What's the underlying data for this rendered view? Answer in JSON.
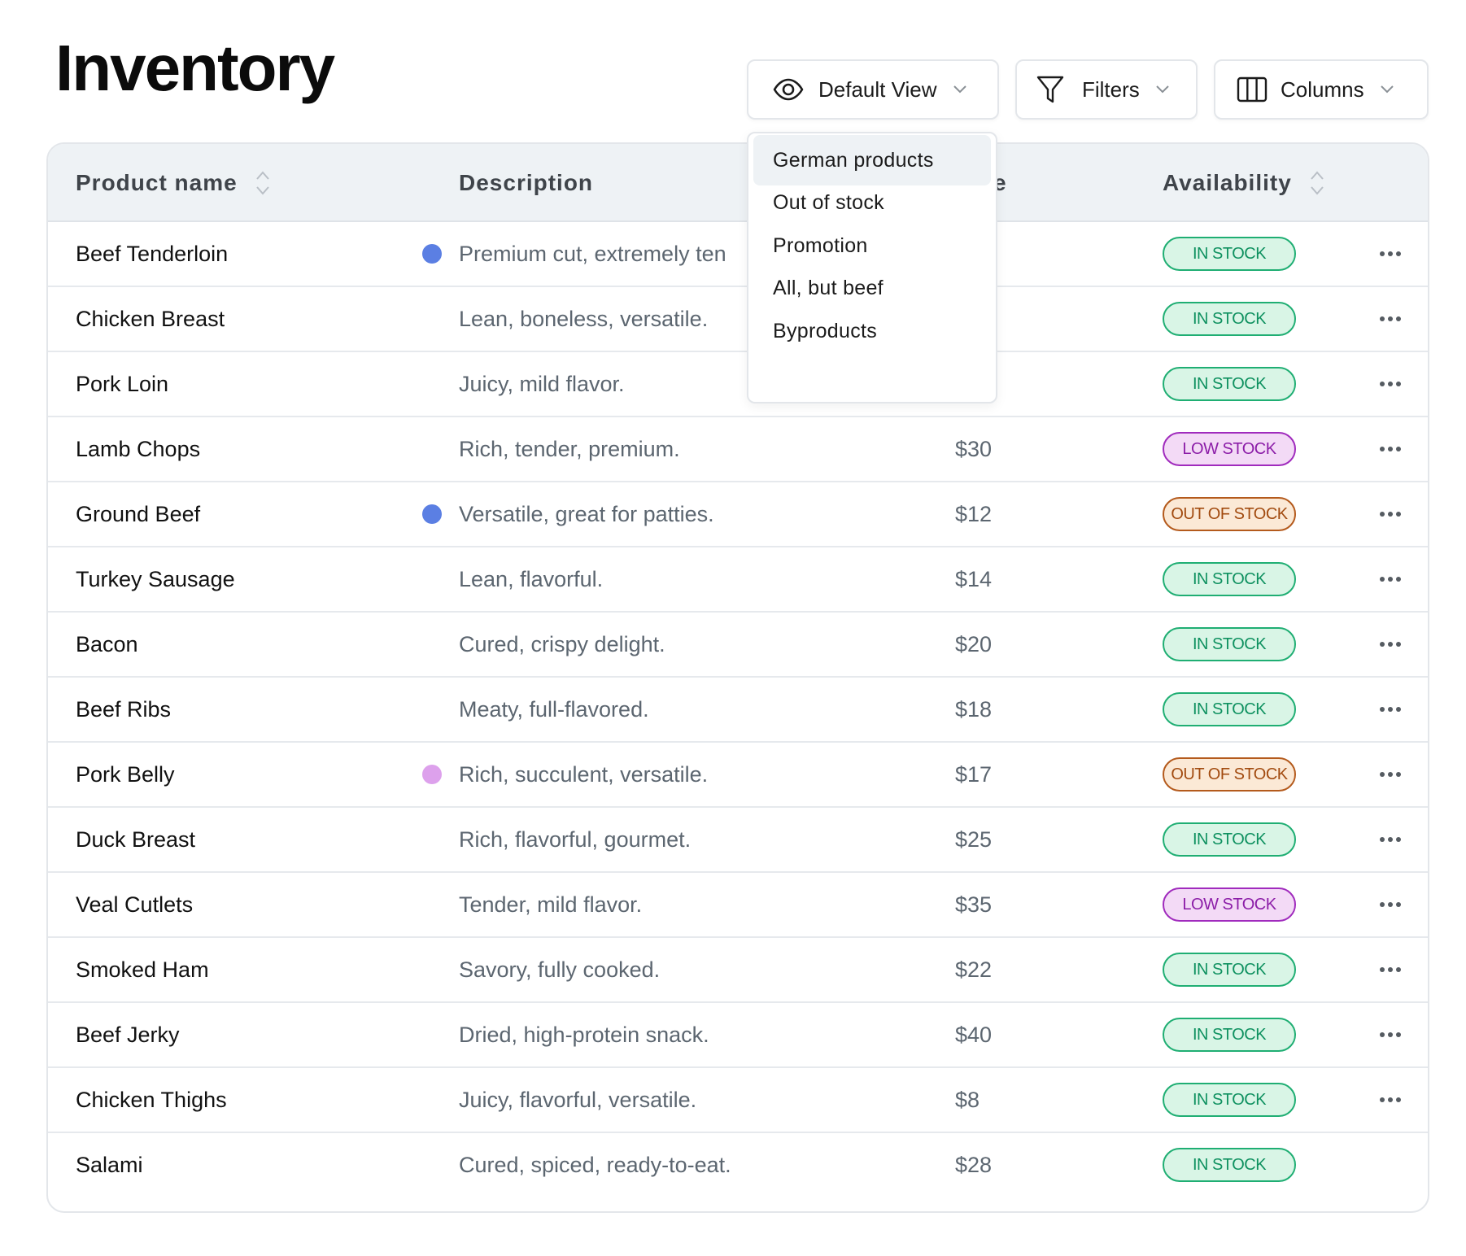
{
  "page": {
    "title": "Inventory"
  },
  "toolbar": {
    "view": {
      "label": "Default View",
      "icon": "eye-icon"
    },
    "filters": {
      "label": "Filters",
      "icon": "funnel-icon"
    },
    "columns": {
      "label": "Columns",
      "icon": "columns-icon"
    }
  },
  "dropdown": {
    "items": [
      "German products",
      "Out of stock",
      "Promotion",
      "All, but beef",
      "Byproducts"
    ],
    "active_index": 0
  },
  "table": {
    "headers": {
      "name": "Product name",
      "description": "Description",
      "price_partial": "e",
      "availability": "Availability"
    },
    "rows": [
      {
        "name": "Beef Tenderloin",
        "dot": "#5b7fe3",
        "description": "Premium cut, extremely ten",
        "price": "",
        "status": "IN STOCK",
        "status_type": "in",
        "more": true
      },
      {
        "name": "Chicken Breast",
        "dot": "",
        "description": "Lean, boneless, versatile.",
        "price": "",
        "status": "IN STOCK",
        "status_type": "in",
        "more": true
      },
      {
        "name": "Pork Loin",
        "dot": "",
        "description": "Juicy, mild flavor.",
        "price": "",
        "status": "IN STOCK",
        "status_type": "in",
        "more": true
      },
      {
        "name": "Lamb Chops",
        "dot": "",
        "description": "Rich, tender, premium.",
        "price": "$30",
        "status": "LOW STOCK",
        "status_type": "low",
        "more": true
      },
      {
        "name": "Ground Beef",
        "dot": "#5b7fe3",
        "description": "Versatile, great for patties.",
        "price": "$12",
        "status": "OUT OF STOCK",
        "status_type": "out",
        "more": true
      },
      {
        "name": "Turkey Sausage",
        "dot": "",
        "description": "Lean, flavorful.",
        "price": "$14",
        "status": "IN STOCK",
        "status_type": "in",
        "more": true
      },
      {
        "name": "Bacon",
        "dot": "",
        "description": "Cured, crispy delight.",
        "price": "$20",
        "status": "IN STOCK",
        "status_type": "in",
        "more": true
      },
      {
        "name": "Beef Ribs",
        "dot": "",
        "description": "Meaty, full-flavored.",
        "price": "$18",
        "status": "IN STOCK",
        "status_type": "in",
        "more": true
      },
      {
        "name": "Pork Belly",
        "dot": "#dda1ec",
        "description": "Rich, succulent, versatile.",
        "price": "$17",
        "status": "OUT OF STOCK",
        "status_type": "out",
        "more": true
      },
      {
        "name": "Duck Breast",
        "dot": "",
        "description": "Rich, flavorful, gourmet.",
        "price": "$25",
        "status": "IN STOCK",
        "status_type": "in",
        "more": true
      },
      {
        "name": "Veal Cutlets",
        "dot": "",
        "description": "Tender, mild flavor.",
        "price": "$35",
        "status": "LOW STOCK",
        "status_type": "low",
        "more": true
      },
      {
        "name": "Smoked Ham",
        "dot": "",
        "description": "Savory, fully cooked.",
        "price": "$22",
        "status": "IN STOCK",
        "status_type": "in",
        "more": true
      },
      {
        "name": "Beef Jerky",
        "dot": "",
        "description": "Dried, high-protein snack.",
        "price": "$40",
        "status": "IN STOCK",
        "status_type": "in",
        "more": true
      },
      {
        "name": "Chicken Thighs",
        "dot": "",
        "description": "Juicy, flavorful, versatile.",
        "price": "$8",
        "status": "IN STOCK",
        "status_type": "in",
        "more": true
      },
      {
        "name": "Salami",
        "dot": "",
        "description": "Cured, spiced, ready-to-eat.",
        "price": "$28",
        "status": "IN STOCK",
        "status_type": "in",
        "more": false
      }
    ]
  },
  "badge_colors": {
    "in": {
      "bg": "#d9f5e6",
      "border": "#1fae73",
      "text": "#0f9160"
    },
    "low": {
      "bg": "#f3daf6",
      "border": "#a02bbd",
      "text": "#8c1ea8"
    },
    "out": {
      "bg": "#fbe9d6",
      "border": "#b45a1c",
      "text": "#a24b10"
    }
  }
}
